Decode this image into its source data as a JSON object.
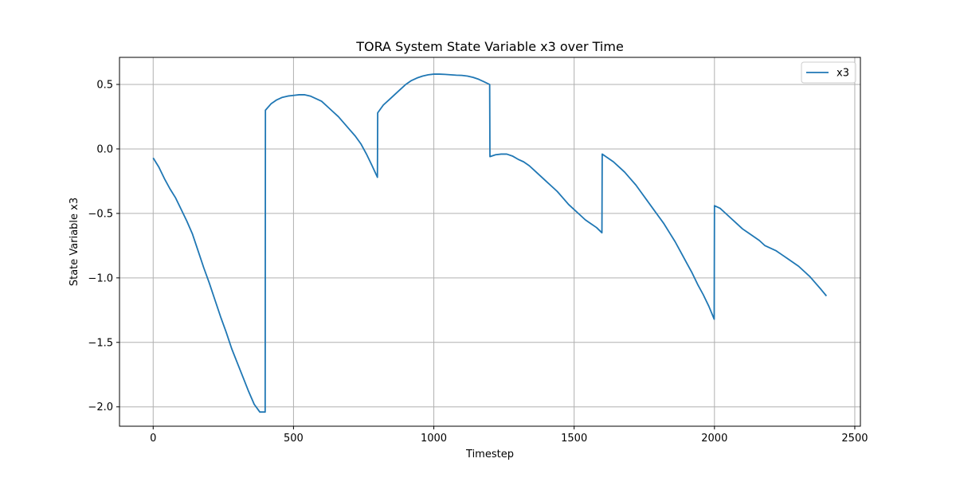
{
  "chart_data": {
    "type": "line",
    "title": "TORA System State Variable x3 over Time",
    "xlabel": "Timestep",
    "ylabel": "State Variable x3",
    "xlim": [
      -120,
      2520
    ],
    "ylim": [
      -2.15,
      0.71
    ],
    "x_ticks": [
      0,
      500,
      1000,
      1500,
      2000,
      2500
    ],
    "x_tick_labels": [
      "0",
      "500",
      "1000",
      "1500",
      "2000",
      "2500"
    ],
    "y_ticks": [
      -2.0,
      -1.5,
      -1.0,
      -0.5,
      0.0,
      0.5
    ],
    "y_tick_labels": [
      "−2.0",
      "−1.5",
      "−1.0",
      "−0.5",
      "0.0",
      "0.5"
    ],
    "grid": true,
    "legend_position": "upper right",
    "series": [
      {
        "name": "x3",
        "color": "#1f77b4",
        "x": [
          0,
          20,
          40,
          60,
          80,
          100,
          120,
          140,
          160,
          180,
          200,
          220,
          240,
          260,
          280,
          300,
          320,
          340,
          360,
          380,
          399,
          400,
          420,
          440,
          460,
          480,
          500,
          520,
          540,
          560,
          580,
          600,
          620,
          640,
          660,
          680,
          700,
          720,
          740,
          760,
          780,
          799,
          800,
          820,
          840,
          860,
          880,
          900,
          920,
          940,
          960,
          980,
          1000,
          1020,
          1040,
          1060,
          1080,
          1100,
          1120,
          1140,
          1160,
          1180,
          1199,
          1200,
          1220,
          1240,
          1260,
          1280,
          1300,
          1320,
          1340,
          1360,
          1380,
          1400,
          1420,
          1440,
          1460,
          1480,
          1500,
          1520,
          1540,
          1560,
          1580,
          1599,
          1600,
          1620,
          1640,
          1660,
          1680,
          1700,
          1720,
          1740,
          1760,
          1780,
          1800,
          1820,
          1840,
          1860,
          1880,
          1900,
          1920,
          1940,
          1960,
          1980,
          1999,
          2000,
          2020,
          2040,
          2060,
          2080,
          2100,
          2120,
          2140,
          2160,
          2180,
          2200,
          2220,
          2240,
          2260,
          2280,
          2300,
          2320,
          2340,
          2360,
          2380,
          2399
        ],
        "y": [
          -0.07,
          -0.14,
          -0.23,
          -0.31,
          -0.38,
          -0.47,
          -0.56,
          -0.66,
          -0.79,
          -0.92,
          -1.04,
          -1.17,
          -1.3,
          -1.42,
          -1.55,
          -1.66,
          -1.77,
          -1.88,
          -1.98,
          -2.04,
          -2.04,
          0.3,
          0.35,
          0.38,
          0.4,
          0.41,
          0.415,
          0.42,
          0.42,
          0.41,
          0.39,
          0.37,
          0.33,
          0.29,
          0.25,
          0.2,
          0.15,
          0.1,
          0.04,
          -0.04,
          -0.13,
          -0.22,
          0.28,
          0.34,
          0.38,
          0.42,
          0.46,
          0.5,
          0.53,
          0.55,
          0.565,
          0.575,
          0.58,
          0.58,
          0.578,
          0.575,
          0.572,
          0.57,
          0.565,
          0.555,
          0.54,
          0.52,
          0.5,
          -0.06,
          -0.045,
          -0.04,
          -0.04,
          -0.055,
          -0.08,
          -0.1,
          -0.13,
          -0.17,
          -0.21,
          -0.25,
          -0.29,
          -0.33,
          -0.38,
          -0.43,
          -0.47,
          -0.51,
          -0.55,
          -0.58,
          -0.61,
          -0.65,
          -0.04,
          -0.07,
          -0.1,
          -0.14,
          -0.18,
          -0.23,
          -0.28,
          -0.34,
          -0.4,
          -0.46,
          -0.52,
          -0.58,
          -0.65,
          -0.72,
          -0.8,
          -0.88,
          -0.96,
          -1.05,
          -1.13,
          -1.22,
          -1.32,
          -0.44,
          -0.46,
          -0.5,
          -0.54,
          -0.58,
          -0.62,
          -0.65,
          -0.68,
          -0.71,
          -0.75,
          -0.77,
          -0.79,
          -0.82,
          -0.85,
          -0.88,
          -0.91,
          -0.95,
          -0.99,
          -1.04,
          -1.09,
          -1.14
        ]
      }
    ]
  }
}
